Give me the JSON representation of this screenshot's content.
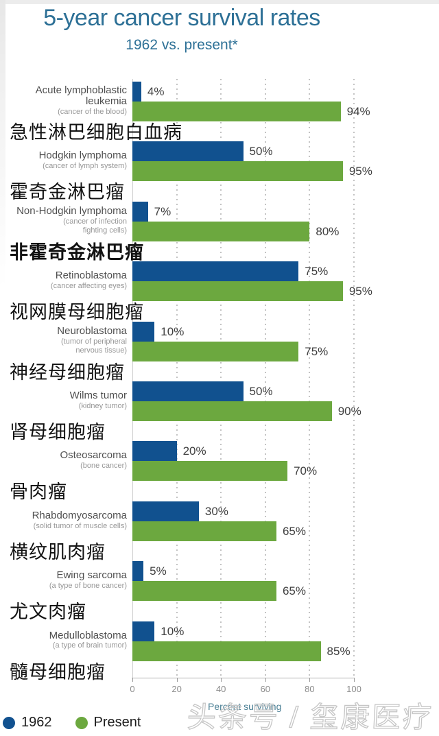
{
  "header": {
    "title": "5-year cancer survival rates",
    "subtitle": "1962 vs. present*"
  },
  "chart_data": {
    "type": "bar",
    "orientation": "horizontal",
    "title": "5-year cancer survival rates",
    "subtitle": "1962 vs. present*",
    "xlabel": "Percent surviving",
    "xlim": [
      0,
      100
    ],
    "x_ticks": [
      0,
      20,
      40,
      60,
      80,
      100
    ],
    "grid": "vertical-dotted",
    "legend_position": "bottom-left",
    "categories": [
      "Acute lymphoblastic leukemia",
      "Hodgkin lymphoma",
      "Non-Hodgkin lymphoma",
      "Retinoblastoma",
      "Neuroblastoma",
      "Wilms tumor",
      "Osteosarcoma",
      "Rhabdomyosarcoma",
      "Ewing sarcoma",
      "Medulloblastoma"
    ],
    "series": [
      {
        "name": "1962",
        "color": "#11518f",
        "values": [
          4,
          50,
          7,
          75,
          10,
          50,
          20,
          30,
          5,
          10
        ]
      },
      {
        "name": "Present",
        "color": "#6ca83f",
        "values": [
          94,
          95,
          80,
          95,
          75,
          90,
          70,
          65,
          65,
          85
        ]
      }
    ],
    "rows": [
      {
        "name_lines": [
          "Acute lymphoblastic",
          "leukemia"
        ],
        "sub_lines": [
          "(cancer of the blood)"
        ],
        "zh": "急性淋巴细胞白血病",
        "zh_bold": false,
        "v1962": 4,
        "vpresent": 94,
        "label1962": "4%",
        "labelpresent": "94%"
      },
      {
        "name_lines": [
          "Hodgkin lymphoma"
        ],
        "sub_lines": [
          "(cancer of lymph system)"
        ],
        "zh": "霍奇金淋巴瘤",
        "zh_bold": false,
        "v1962": 50,
        "vpresent": 95,
        "label1962": "50%",
        "labelpresent": "95%"
      },
      {
        "name_lines": [
          "Non-Hodgkin lymphoma"
        ],
        "sub_lines": [
          "(cancer of infection",
          "fighting cells)"
        ],
        "zh": "非霍奇金淋巴瘤",
        "zh_bold": true,
        "v1962": 7,
        "vpresent": 80,
        "label1962": "7%",
        "labelpresent": "80%"
      },
      {
        "name_lines": [
          "Retinoblastoma"
        ],
        "sub_lines": [
          "(cancer affecting eyes)"
        ],
        "zh": "视网膜母细胞瘤",
        "zh_bold": false,
        "v1962": 75,
        "vpresent": 95,
        "label1962": "75%",
        "labelpresent": "95%"
      },
      {
        "name_lines": [
          "Neuroblastoma"
        ],
        "sub_lines": [
          "(tumor of peripheral",
          "nervous tissue)"
        ],
        "zh": "神经母细胞瘤",
        "zh_bold": false,
        "v1962": 10,
        "vpresent": 75,
        "label1962": "10%",
        "labelpresent": "75%"
      },
      {
        "name_lines": [
          "Wilms tumor"
        ],
        "sub_lines": [
          "(kidney tumor)"
        ],
        "zh": "肾母细胞瘤",
        "zh_bold": false,
        "v1962": 50,
        "vpresent": 90,
        "label1962": "50%",
        "labelpresent": "90%"
      },
      {
        "name_lines": [
          "Osteosarcoma"
        ],
        "sub_lines": [
          "(bone cancer)"
        ],
        "zh": "骨肉瘤",
        "zh_bold": false,
        "v1962": 20,
        "vpresent": 70,
        "label1962": "20%",
        "labelpresent": "70%"
      },
      {
        "name_lines": [
          "Rhabdomyosarcoma"
        ],
        "sub_lines": [
          "(solid tumor of muscle cells)"
        ],
        "zh": "横纹肌肉瘤",
        "zh_bold": false,
        "v1962": 30,
        "vpresent": 65,
        "label1962": "30%",
        "labelpresent": "65%"
      },
      {
        "name_lines": [
          "Ewing sarcoma"
        ],
        "sub_lines": [
          "(a type of bone cancer)"
        ],
        "zh": "尤文肉瘤",
        "zh_bold": false,
        "v1962": 5,
        "vpresent": 65,
        "label1962": "5%",
        "labelpresent": "65%"
      },
      {
        "name_lines": [
          "Medulloblastoma"
        ],
        "sub_lines": [
          "(a type of brain tumor)"
        ],
        "zh": "髓母细胞瘤",
        "zh_bold": false,
        "v1962": 10,
        "vpresent": 85,
        "label1962": "10%",
        "labelpresent": "85%"
      }
    ]
  },
  "axis": {
    "tick_labels": [
      "0",
      "20",
      "40",
      "60",
      "80",
      "100"
    ],
    "label": "Percent surviving"
  },
  "legend": {
    "items": [
      {
        "label": "1962",
        "color": "#11518f"
      },
      {
        "label": "Present",
        "color": "#6ca83f"
      }
    ]
  },
  "watermark": {
    "text": "头条号 / 玺康医疗"
  },
  "colors": {
    "bar_1962": "#11518f",
    "bar_present": "#6ca83f",
    "title": "#2d7096",
    "grid": "#c3c3c3",
    "axis_line": "#b0b0b0",
    "tick_label": "#8c8c8c",
    "en_label": "#4f4f4f",
    "en_sub": "#979797",
    "value_label": "#3f3f3f",
    "zh_label": "#121212",
    "axis_caption": "#4d8196",
    "watermark": "#c6c6c6"
  }
}
